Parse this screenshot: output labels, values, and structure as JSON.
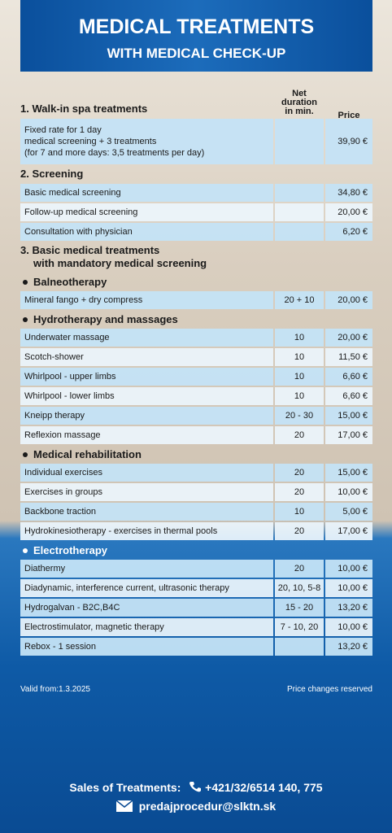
{
  "header": {
    "title": "MEDICAL TREATMENTS",
    "subtitle": "WITH MEDICAL CHECK-UP"
  },
  "columns": {
    "duration": [
      "Net",
      "duration",
      "in min."
    ],
    "price": "Price"
  },
  "sections": [
    {
      "title": [
        "1. Walk-in spa treatments"
      ],
      "rows": [
        {
          "name": [
            "Fixed rate for 1 day",
            "medical screening + 3 treatments",
            "(for 7 and more days: 3,5 treatments per day)"
          ],
          "price": "39,90 €"
        }
      ]
    },
    {
      "title": [
        "2. Screening"
      ],
      "rows": [
        {
          "name": "Basic medical screening",
          "price": "34,80 €"
        },
        {
          "name": "Follow-up medical screening",
          "price": "20,00 €"
        },
        {
          "name": "Consultation with physician",
          "price": "6,20 €"
        }
      ]
    },
    {
      "title": [
        "3. Basic medical treatments",
        "with mandatory medical screening"
      ],
      "groups": [
        {
          "title": "Balneotherapy",
          "rows": [
            {
              "name": "Mineral fango + dry compress",
              "duration": "20 + 10",
              "price": "20,00 €"
            }
          ]
        },
        {
          "title": "Hydrotherapy and massages",
          "rows": [
            {
              "name": "Underwater massage",
              "duration": "10",
              "price": "20,00 €"
            },
            {
              "name": "Scotch-shower",
              "duration": "10",
              "price": "11,50 €"
            },
            {
              "name": "Whirlpool - upper limbs",
              "duration": "10",
              "price": "6,60 €"
            },
            {
              "name": "Whirlpool - lower limbs",
              "duration": "10",
              "price": "6,60 €"
            },
            {
              "name": "Kneipp therapy",
              "duration": "20 - 30",
              "price": "15,00 €"
            },
            {
              "name": "Reflexion massage",
              "duration": "20",
              "price": "17,00 €"
            }
          ]
        },
        {
          "title": "Medical rehabilitation",
          "rows": [
            {
              "name": "Individual exercises",
              "duration": "20",
              "price": "15,00 €"
            },
            {
              "name": "Exercises in groups",
              "duration": "20",
              "price": "10,00 €"
            },
            {
              "name": "Backbone traction",
              "duration": "10",
              "price": "5,00 €"
            },
            {
              "name": "Hydrokinesiotherapy - exercises in thermal pools",
              "duration": "20",
              "price": "17,00 €"
            }
          ]
        },
        {
          "title": "Electrotherapy",
          "rows": [
            {
              "name": "Diathermy",
              "duration": "20",
              "price": "10,00 €"
            },
            {
              "name": "Diadynamic, interference current, ultrasonic therapy",
              "duration": "20, 10, 5-8",
              "price": "10,00 €"
            },
            {
              "name": "Hydrogalvan - B2C,B4C",
              "duration": "15 - 20",
              "price": "13,20 €"
            },
            {
              "name": "Electrostimulator, magnetic therapy",
              "duration": "7 - 10, 20",
              "price": "10,00 €"
            },
            {
              "name": "Rebox - 1 session",
              "price": "13,20 €"
            }
          ]
        }
      ]
    }
  ],
  "footer": {
    "valid": "Valid from:1.3.2025",
    "note": "Price changes reserved",
    "sales": "Sales of Treatments:",
    "phone": "+421/32/6514 140, 775",
    "email": "predajprocedur@slktn.sk"
  }
}
